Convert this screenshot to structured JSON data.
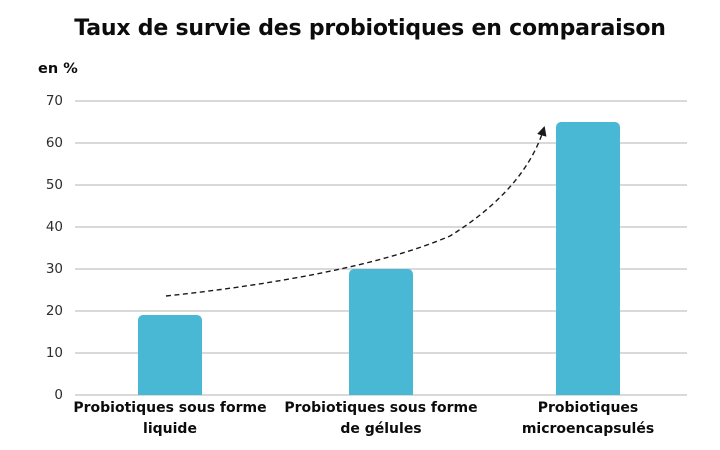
{
  "chart_data": {
    "type": "bar",
    "title": "Taux de survie des probiotiques en comparaison",
    "ylabel": "en %",
    "xlabel": "",
    "categories": [
      "Probiotiques sous forme liquide",
      "Probiotiques sous forme de gélules",
      "Probiotiques microencapsulés"
    ],
    "category_lines": [
      [
        "Probiotiques sous forme",
        "liquide"
      ],
      [
        "Probiotiques sous forme",
        "de gélules"
      ],
      [
        "Probiotiques",
        "microencapsulés"
      ]
    ],
    "values": [
      19,
      30,
      65
    ],
    "ylim": [
      0,
      70
    ],
    "yticks": [
      70,
      60,
      50,
      40,
      30,
      20,
      10,
      0
    ],
    "grid": true,
    "legend": false,
    "annotation": "dashed exponential trend arrow rising from first bar to third bar",
    "colors": {
      "bar": "#49b8d5",
      "gridline": "#d9d9d9",
      "title_text": "#0c0c0c",
      "tick_text": "#2e2e2e",
      "label_text": "#0c0c0c",
      "arrow": "#1a1a1a"
    }
  }
}
